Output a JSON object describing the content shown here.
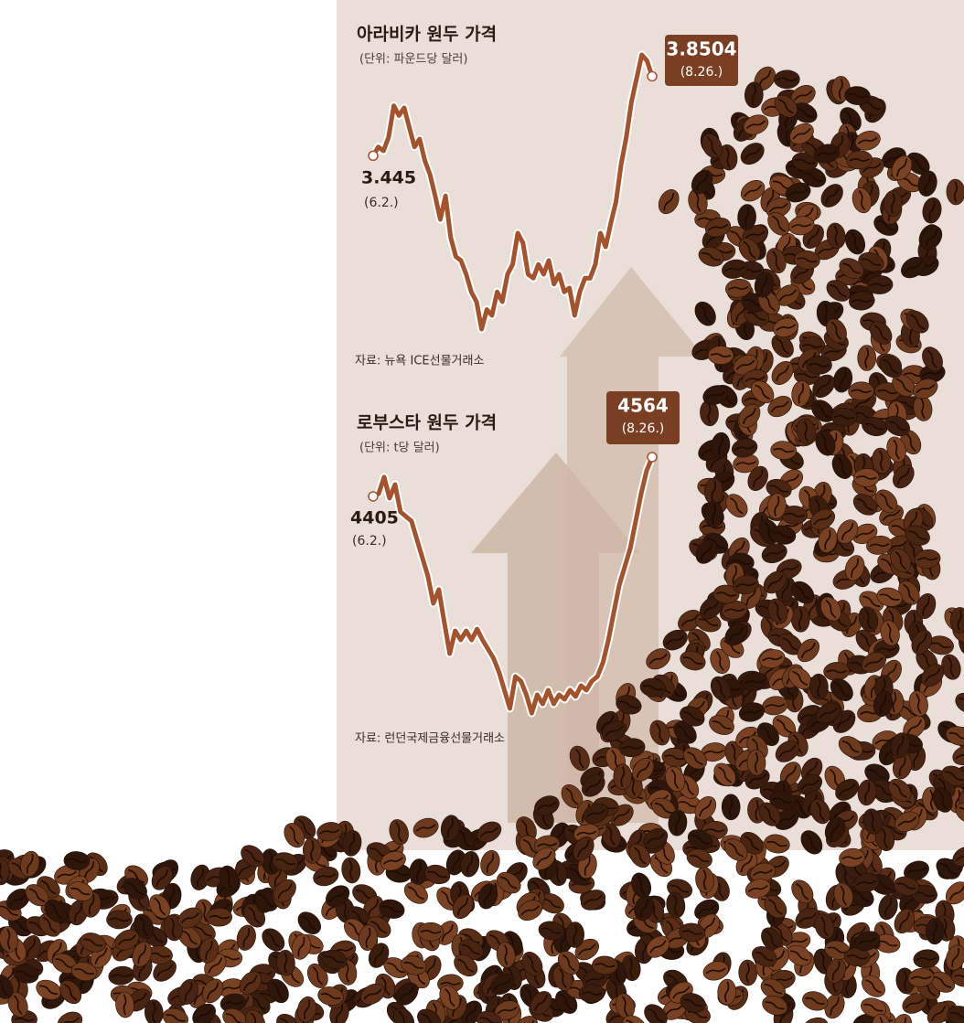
{
  "chart_data": [
    {
      "type": "line",
      "title": "아라비카 원두 가격",
      "subtitle": "(단위: 파운드당 달러)",
      "source": "자료: 뉴욕 ICE선물거래소",
      "start_date": "(6.2.)",
      "end_date": "(8.26.)",
      "color": "#a5532c",
      "values": [
        3.445,
        3.49,
        3.47,
        3.54,
        3.7,
        3.65,
        3.69,
        3.59,
        3.49,
        3.53,
        3.42,
        3.35,
        3.24,
        3.12,
        3.24,
        3.03,
        2.93,
        2.91,
        2.84,
        2.75,
        2.7,
        2.56,
        2.66,
        2.63,
        2.75,
        2.7,
        2.84,
        2.89,
        3.05,
        3.0,
        2.84,
        2.82,
        2.89,
        2.84,
        2.91,
        2.79,
        2.84,
        2.75,
        2.77,
        2.63,
        2.75,
        2.82,
        2.82,
        2.89,
        3.05,
        2.98,
        3.1,
        3.21,
        3.4,
        3.54,
        3.72,
        3.84,
        3.96,
        3.93,
        3.8504
      ]
    },
    {
      "type": "line",
      "title": "로부스타 원두 가격",
      "subtitle": "(단위: t당 달러)",
      "source": "자료: 런던국제금융선물거래소",
      "start_date": "(6.2.)",
      "end_date": "(8.26.)",
      "color": "#a5532c",
      "values": [
        4405,
        4416,
        4483,
        4398,
        4453,
        4342,
        4324,
        4305,
        4231,
        4157,
        4083,
        3972,
        4028,
        3898,
        3769,
        3861,
        3824,
        3861,
        3824,
        3868,
        3824,
        3787,
        3750,
        3695,
        3621,
        3547,
        3676,
        3658,
        3602,
        3528,
        3602,
        3565,
        3621,
        3565,
        3602,
        3584,
        3621,
        3595,
        3639,
        3621,
        3658,
        3676,
        3732,
        3824,
        3935,
        4046,
        4120,
        4194,
        4305,
        4416,
        4509,
        4564
      ]
    }
  ]
}
